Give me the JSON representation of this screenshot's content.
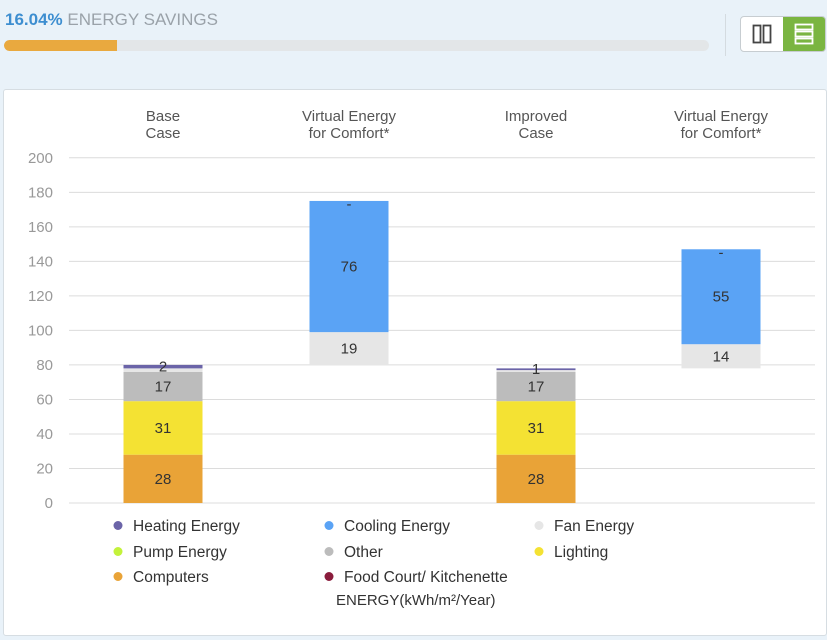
{
  "header": {
    "savings_percent": "16.04%",
    "savings_label": "ENERGY SAVINGS",
    "savings_progress": 0.1604
  },
  "view_toggle": {
    "options": [
      "side-by-side",
      "stacked"
    ],
    "active": "stacked"
  },
  "colors": {
    "accent": "#3d8ed0",
    "progress": "#e9a93f",
    "toggle_active": "#7ab541"
  },
  "chart_data": {
    "type": "bar",
    "stacked": true,
    "categories": [
      [
        "Base",
        "Case"
      ],
      [
        "Virtual Energy",
        "for Comfort*"
      ],
      [
        "Improved",
        "Case"
      ],
      [
        "Virtual Energy",
        "for Comfort*"
      ]
    ],
    "ylim": [
      0,
      200
    ],
    "yticks": [
      0,
      20,
      40,
      60,
      80,
      100,
      120,
      140,
      160,
      180,
      200
    ],
    "ylabel": "ENERGY(kWh/m²/Year)",
    "grid": true,
    "series": [
      {
        "name": "Computers",
        "color": "#e9a337",
        "values": [
          28,
          0,
          28,
          0
        ],
        "labels": [
          "28",
          "",
          "28",
          ""
        ]
      },
      {
        "name": "Lighting",
        "color": "#f4e233",
        "values": [
          31,
          0,
          31,
          0
        ],
        "labels": [
          "31",
          "",
          "31",
          ""
        ]
      },
      {
        "name": "Other",
        "color": "#bcbcbc",
        "values": [
          17,
          0,
          17,
          0
        ],
        "labels": [
          "17",
          "",
          "17",
          ""
        ]
      },
      {
        "name": "Fan Energy",
        "color": "#e6e6e6",
        "values": [
          2,
          19,
          1,
          14
        ],
        "labels": [
          "",
          "19",
          "",
          "14"
        ]
      },
      {
        "name": "Pump Energy",
        "color": "#c3f23a",
        "values": [
          0,
          0,
          0,
          0
        ],
        "labels": [
          "",
          "",
          "",
          ""
        ]
      },
      {
        "name": "Food Court/ Kitchenette",
        "color": "#8a1c3c",
        "values": [
          0,
          0,
          0,
          0
        ],
        "labels": [
          "",
          "",
          "",
          ""
        ]
      },
      {
        "name": "Heating Energy",
        "color": "#6b64a8",
        "values": [
          2,
          0,
          1,
          0
        ],
        "labels": [
          "2",
          "",
          "1",
          ""
        ]
      },
      {
        "name": "Cooling Energy",
        "color": "#5aa3f5",
        "values": [
          0,
          76,
          0,
          55
        ],
        "labels": [
          "",
          "76",
          "",
          "55"
        ]
      }
    ],
    "top_labels": [
      "",
      "-",
      "",
      "-"
    ],
    "bar_offsets": [
      0,
      80,
      0,
      78
    ],
    "legend": [
      {
        "name": "Heating Energy",
        "color": "#6b64a8"
      },
      {
        "name": "Cooling Energy",
        "color": "#5aa3f5"
      },
      {
        "name": "Fan Energy",
        "color": "#e6e6e6"
      },
      {
        "name": "Pump Energy",
        "color": "#c3f23a"
      },
      {
        "name": "Other",
        "color": "#bcbcbc"
      },
      {
        "name": "Lighting",
        "color": "#f4e233"
      },
      {
        "name": "Computers",
        "color": "#e9a337"
      },
      {
        "name": "Food Court/ Kitchenette",
        "color": "#8a1c3c"
      }
    ]
  }
}
